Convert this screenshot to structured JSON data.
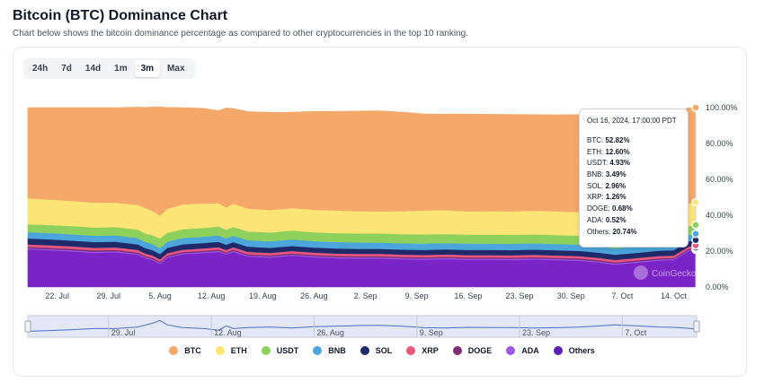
{
  "header": {
    "title": "Bitcoin (BTC) Dominance Chart",
    "subtitle": "Chart below shows the bitcoin dominance percentage as compared to other cryptocurrencies in the top 10 ranking."
  },
  "range_buttons": [
    {
      "label": "24h",
      "active": false
    },
    {
      "label": "7d",
      "active": false
    },
    {
      "label": "14d",
      "active": false
    },
    {
      "label": "1m",
      "active": false
    },
    {
      "label": "3m",
      "active": true
    },
    {
      "label": "Max",
      "active": false
    }
  ],
  "watermark": "CoinGecko",
  "tooltip": {
    "date": "Oct 16, 2024, 17:00:00 PDT",
    "rows": [
      {
        "label": "BTC:",
        "value": "52.82%"
      },
      {
        "label": "ETH:",
        "value": "12.60%"
      },
      {
        "label": "USDT:",
        "value": "4.93%"
      },
      {
        "label": "BNB:",
        "value": "3.49%"
      },
      {
        "label": "SOL:",
        "value": "2.96%"
      },
      {
        "label": "XRP:",
        "value": "1.26%"
      },
      {
        "label": "DOGE:",
        "value": "0.68%"
      },
      {
        "label": "ADA:",
        "value": "0.52%"
      },
      {
        "label": "Others:",
        "value": "20.74%"
      }
    ]
  },
  "chart_data": {
    "type": "area",
    "stacked": true,
    "title": "Bitcoin (BTC) Dominance Chart",
    "ylabel": "",
    "xlabel": "",
    "ylim": [
      0,
      100
    ],
    "y_ticks": [
      "0.00%",
      "20.00%",
      "40.00%",
      "60.00%",
      "80.00%",
      "100.00%"
    ],
    "x_ticks": [
      {
        "day": 4,
        "label": "22. Jul"
      },
      {
        "day": 11,
        "label": "29. Jul"
      },
      {
        "day": 18,
        "label": "5. Aug"
      },
      {
        "day": 25,
        "label": "12. Aug"
      },
      {
        "day": 32,
        "label": "19. Aug"
      },
      {
        "day": 39,
        "label": "26. Aug"
      },
      {
        "day": 46,
        "label": "2. Sep"
      },
      {
        "day": 53,
        "label": "9. Sep"
      },
      {
        "day": 60,
        "label": "16. Sep"
      },
      {
        "day": 67,
        "label": "23. Sep"
      },
      {
        "day": 74,
        "label": "30. Sep"
      },
      {
        "day": 81,
        "label": "7. Oct"
      },
      {
        "day": 88,
        "label": "14. Oct"
      }
    ],
    "navigator_ticks": [
      {
        "day": 11,
        "label": "29. Jul"
      },
      {
        "day": 25,
        "label": "12. Aug"
      },
      {
        "day": 39,
        "label": "26. Aug"
      },
      {
        "day": 53,
        "label": "9. Sep"
      },
      {
        "day": 67,
        "label": "23. Sep"
      },
      {
        "day": 81,
        "label": "7. Oct"
      }
    ],
    "x_days": [
      0,
      3,
      6,
      9,
      12,
      15,
      16,
      17,
      18,
      19,
      21,
      24,
      26,
      27,
      28,
      30,
      33,
      36,
      39,
      42,
      45,
      48,
      51,
      54,
      57,
      60,
      63,
      66,
      69,
      72,
      75,
      78,
      80,
      83,
      86,
      88,
      90,
      91
    ],
    "series": [
      {
        "name": "BTC",
        "color": "#f4a86a",
        "values": [
          50.5,
          51.2,
          52.0,
          53.0,
          53.0,
          54.5,
          56.0,
          58.0,
          60.5,
          56.5,
          54.0,
          53.0,
          51.5,
          55.5,
          53.0,
          54.0,
          54.5,
          53.5,
          54.8,
          55.2,
          55.8,
          56.0,
          55.2,
          53.8,
          53.5,
          54.2,
          54.0,
          54.0,
          53.5,
          53.8,
          54.3,
          55.5,
          56.5,
          55.5,
          54.5,
          54.2,
          53.5,
          52.82
        ]
      },
      {
        "name": "ETH",
        "color": "#fde476",
        "values": [
          14.5,
          14.2,
          14.0,
          13.8,
          13.6,
          13.8,
          14.2,
          13.5,
          12.8,
          13.3,
          13.8,
          13.6,
          13.0,
          12.4,
          13.0,
          12.8,
          12.5,
          12.5,
          12.6,
          12.6,
          12.4,
          12.3,
          12.8,
          13.3,
          13.3,
          13.0,
          13.1,
          13.1,
          13.2,
          13.2,
          13.1,
          13.0,
          12.8,
          12.8,
          12.8,
          12.7,
          12.65,
          12.6
        ]
      },
      {
        "name": "USDT",
        "color": "#8ed05c",
        "values": [
          4.4,
          4.5,
          4.6,
          4.6,
          4.6,
          4.7,
          4.7,
          4.9,
          5.4,
          5.0,
          4.9,
          4.9,
          5.0,
          4.8,
          4.9,
          4.9,
          4.9,
          5.0,
          4.9,
          5.0,
          5.0,
          5.1,
          5.1,
          5.2,
          5.1,
          5.0,
          5.0,
          5.0,
          5.0,
          5.0,
          5.0,
          5.0,
          5.0,
          5.0,
          5.0,
          4.95,
          4.94,
          4.93
        ]
      },
      {
        "name": "BNB",
        "color": "#4ca6dc",
        "values": [
          3.5,
          3.5,
          3.5,
          3.5,
          3.5,
          3.5,
          3.5,
          3.4,
          3.3,
          3.4,
          3.5,
          3.5,
          3.6,
          3.5,
          3.5,
          3.6,
          3.6,
          3.6,
          3.6,
          3.6,
          3.6,
          3.5,
          3.5,
          3.5,
          3.5,
          3.5,
          3.5,
          3.5,
          3.5,
          3.5,
          3.5,
          3.5,
          3.5,
          3.5,
          3.5,
          3.5,
          3.49,
          3.49
        ]
      },
      {
        "name": "SOL",
        "color": "#1f2a6b",
        "values": [
          3.3,
          3.3,
          3.2,
          3.2,
          3.2,
          3.1,
          3.0,
          3.0,
          3.0,
          3.0,
          3.0,
          3.0,
          3.0,
          2.9,
          2.9,
          2.9,
          2.9,
          2.8,
          2.8,
          2.8,
          2.8,
          2.8,
          2.8,
          2.8,
          2.8,
          2.9,
          2.9,
          2.9,
          2.9,
          2.9,
          2.9,
          2.9,
          2.9,
          2.9,
          2.95,
          2.95,
          2.96,
          2.96
        ]
      },
      {
        "name": "XRP",
        "color": "#e8577e",
        "values": [
          1.4,
          1.4,
          1.4,
          1.4,
          1.4,
          1.4,
          1.4,
          1.3,
          1.3,
          1.3,
          1.3,
          1.3,
          1.3,
          1.3,
          1.3,
          1.3,
          1.3,
          1.3,
          1.3,
          1.3,
          1.3,
          1.3,
          1.3,
          1.3,
          1.3,
          1.3,
          1.3,
          1.3,
          1.3,
          1.3,
          1.3,
          1.3,
          1.3,
          1.3,
          1.27,
          1.27,
          1.26,
          1.26
        ]
      },
      {
        "name": "DOGE",
        "color": "#7e2d75",
        "values": [
          0.8,
          0.8,
          0.8,
          0.8,
          0.7,
          0.7,
          0.7,
          0.7,
          0.7,
          0.7,
          0.7,
          0.7,
          0.7,
          0.7,
          0.7,
          0.7,
          0.7,
          0.7,
          0.7,
          0.7,
          0.7,
          0.7,
          0.7,
          0.7,
          0.7,
          0.7,
          0.7,
          0.7,
          0.7,
          0.7,
          0.7,
          0.7,
          0.7,
          0.7,
          0.69,
          0.68,
          0.68,
          0.68
        ]
      },
      {
        "name": "ADA",
        "color": "#9b59e6",
        "values": [
          0.6,
          0.6,
          0.6,
          0.6,
          0.6,
          0.6,
          0.6,
          0.6,
          0.6,
          0.6,
          0.6,
          0.6,
          0.6,
          0.6,
          0.6,
          0.6,
          0.6,
          0.6,
          0.6,
          0.6,
          0.6,
          0.6,
          0.6,
          0.6,
          0.6,
          0.6,
          0.6,
          0.6,
          0.6,
          0.6,
          0.6,
          0.6,
          0.6,
          0.6,
          0.53,
          0.52,
          0.52,
          0.52
        ]
      },
      {
        "name": "Others",
        "color": "#7a23c7",
        "values": [
          21.0,
          20.5,
          19.9,
          19.1,
          19.4,
          18.0,
          16.0,
          15.0,
          12.8,
          16.3,
          18.2,
          19.0,
          19.6,
          18.1,
          19.6,
          17.0,
          16.4,
          17.5,
          16.6,
          16.1,
          15.9,
          15.9,
          15.5,
          15.3,
          15.6,
          15.2,
          15.2,
          15.1,
          15.4,
          15.0,
          14.7,
          13.6,
          12.5,
          13.6,
          14.8,
          15.1,
          20.0,
          20.74
        ]
      }
    ],
    "navigator": {
      "x_days": [
        0,
        3,
        6,
        9,
        12,
        15,
        17,
        18,
        19,
        21,
        24,
        26,
        27,
        28,
        30,
        33,
        36,
        39,
        42,
        45,
        48,
        51,
        54,
        57,
        60,
        63,
        66,
        69,
        72,
        75,
        78,
        80,
        83,
        86,
        88,
        91
      ],
      "values": [
        50.5,
        51.2,
        52.0,
        53.0,
        53.0,
        54.5,
        58.0,
        60.5,
        56.5,
        54.0,
        53.0,
        51.5,
        55.5,
        53.0,
        54.0,
        54.5,
        53.5,
        54.8,
        55.2,
        55.8,
        56.0,
        55.2,
        53.8,
        53.5,
        54.2,
        54.0,
        54.0,
        53.5,
        53.8,
        54.3,
        55.5,
        56.5,
        55.5,
        54.5,
        54.2,
        52.82
      ]
    }
  },
  "legend": [
    {
      "name": "BTC",
      "color": "#f4a86a"
    },
    {
      "name": "ETH",
      "color": "#fde476"
    },
    {
      "name": "USDT",
      "color": "#8ed05c"
    },
    {
      "name": "BNB",
      "color": "#4ca6dc"
    },
    {
      "name": "SOL",
      "color": "#1f2a6b"
    },
    {
      "name": "XRP",
      "color": "#e8577e"
    },
    {
      "name": "DOGE",
      "color": "#7e2d75"
    },
    {
      "name": "ADA",
      "color": "#9b59e6"
    },
    {
      "name": "Others",
      "color": "#5b21b6"
    }
  ]
}
